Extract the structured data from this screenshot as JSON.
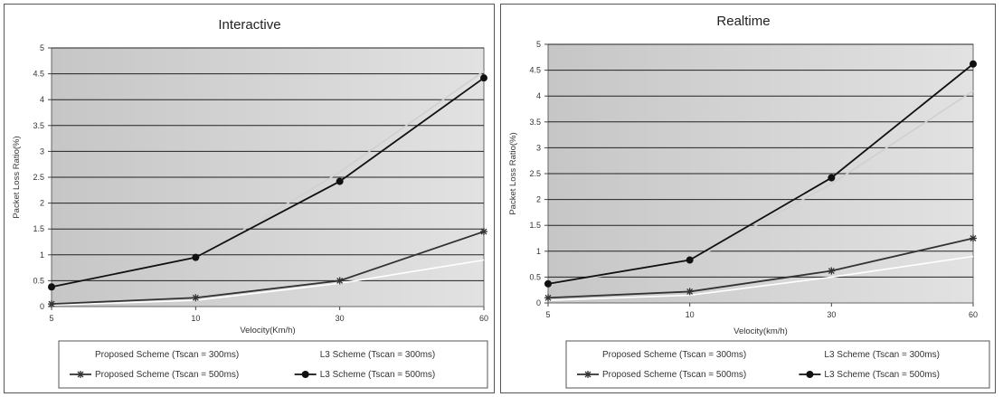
{
  "chart_data": [
    {
      "type": "line",
      "title": "Interactive",
      "xlabel": "Velocity(Km/h)",
      "ylabel": "Packet Loss Ratio(%)",
      "categories": [
        "5",
        "10",
        "30",
        "60"
      ],
      "ylim": [
        0,
        5
      ],
      "yticks": [
        "0",
        "0.5",
        "1",
        "1.5",
        "2",
        "2.5",
        "3",
        "3.5",
        "4",
        "4.5",
        "5"
      ],
      "grid": true,
      "legend_position": "bottom",
      "series": [
        {
          "name": "Proposed Scheme (Tscan = 300ms)",
          "values": [
            0.03,
            0.12,
            0.45,
            0.9
          ],
          "color": "#ffffff",
          "marker": "none"
        },
        {
          "name": "L3 Scheme (Tscan = 300ms)",
          "values": [
            0.38,
            0.93,
            2.6,
            4.55
          ],
          "color": "#d0d0d0",
          "marker": "none"
        },
        {
          "name": "Proposed Scheme (Tscan = 500ms)",
          "values": [
            0.05,
            0.17,
            0.5,
            1.45
          ],
          "color": "#333333",
          "marker": "star"
        },
        {
          "name": "L3 Scheme (Tscan = 500ms)",
          "values": [
            0.38,
            0.95,
            2.42,
            4.42
          ],
          "color": "#111111",
          "marker": "circle"
        }
      ]
    },
    {
      "type": "line",
      "title": "Realtime",
      "xlabel": "Velocity(km/h)",
      "ylabel": "Packet Loss Ratio(%)",
      "categories": [
        "5",
        "10",
        "30",
        "60"
      ],
      "ylim": [
        0,
        5
      ],
      "yticks": [
        "0",
        "0.5",
        "1",
        "1.5",
        "2",
        "2.5",
        "3",
        "3.5",
        "4",
        "4.5",
        "5"
      ],
      "grid": true,
      "legend_position": "bottom",
      "series": [
        {
          "name": "Proposed Scheme (Tscan = 300ms)",
          "values": [
            0.05,
            0.15,
            0.5,
            0.9
          ],
          "color": "#ffffff",
          "marker": "none"
        },
        {
          "name": "L3 Scheme (Tscan = 300ms)",
          "values": [
            0.35,
            0.8,
            2.3,
            4.1
          ],
          "color": "#d0d0d0",
          "marker": "none"
        },
        {
          "name": "Proposed Scheme (Tscan = 500ms)",
          "values": [
            0.1,
            0.22,
            0.62,
            1.25
          ],
          "color": "#333333",
          "marker": "star"
        },
        {
          "name": "L3 Scheme (Tscan = 500ms)",
          "values": [
            0.37,
            0.83,
            2.42,
            4.62
          ],
          "color": "#111111",
          "marker": "circle"
        }
      ]
    }
  ]
}
